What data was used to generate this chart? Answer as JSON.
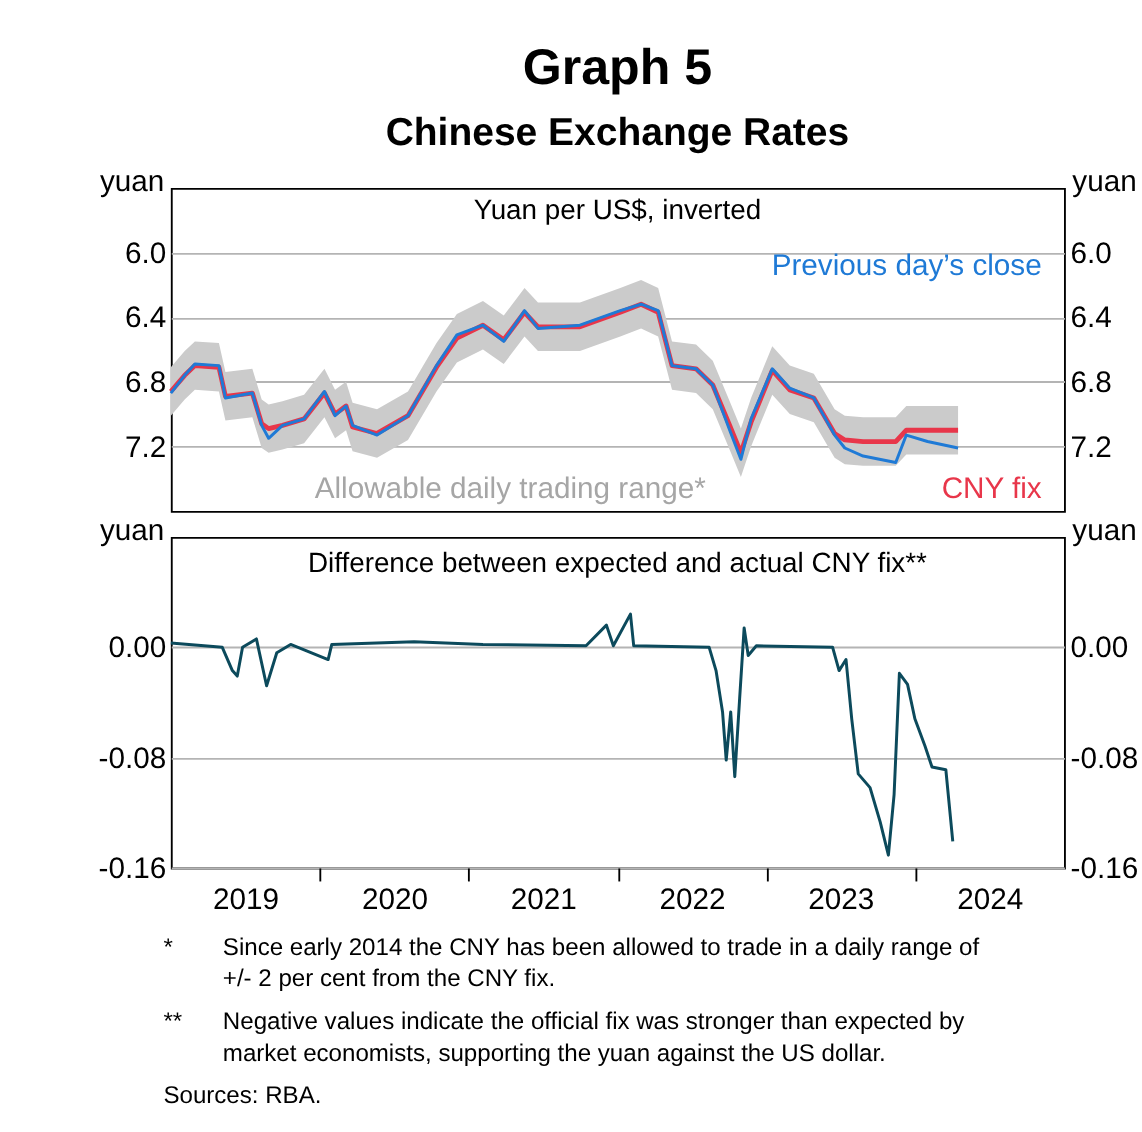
{
  "chart_data": [
    {
      "type": "line",
      "title": "Graph 5",
      "subtitle": "Chinese Exchange Rates",
      "ylabel": "yuan",
      "y2label": "yuan",
      "annotations": [
        "Yuan per US$, inverted",
        "Allowable daily trading range*"
      ],
      "xlim": [
        "2019-01-01",
        "2025-01-01"
      ],
      "tick_labels": "y",
      "ylim": [
        7.6,
        5.6
      ],
      "yticks": [
        {
          "value": 6.0,
          "label": "6.0"
        },
        {
          "value": 6.4,
          "label": "6.4"
        },
        {
          "value": 6.8,
          "label": "6.8"
        },
        {
          "value": 7.2,
          "label": "7.2"
        }
      ],
      "y2lim": [
        7.6,
        5.6
      ],
      "y2ticks": [
        {
          "value": 6.0,
          "label": "6.0"
        },
        {
          "value": 6.4,
          "label": "6.4"
        },
        {
          "value": 6.8,
          "label": "6.8"
        },
        {
          "value": 7.2,
          "label": "7.2"
        }
      ],
      "grid": "y",
      "series": [
        {
          "name": "Previous day’s close",
          "color": "#1f7ad6",
          "x": [
            "2019-01-01",
            "2019-02-04",
            "2019-03-01",
            "2019-04-29",
            "2019-05-15",
            "2019-07-20",
            "2019-08-12",
            "2019-08-29",
            "2019-10-02",
            "2019-11-24",
            "2020-01-13",
            "2020-02-08",
            "2020-03-06",
            "2020-03-22",
            "2020-05-21",
            "2020-08-05",
            "2020-10-14",
            "2020-12-03",
            "2021-02-05",
            "2021-03-28",
            "2021-05-18",
            "2021-06-20",
            "2021-10-01",
            "2022-01-08",
            "2022-02-28",
            "2022-04-11",
            "2022-05-15",
            "2022-07-13",
            "2022-08-23",
            "2022-10-05",
            "2022-10-31",
            "2022-11-25",
            "2023-01-16",
            "2023-02-28",
            "2023-04-28",
            "2023-06-18",
            "2023-07-13",
            "2023-08-27",
            "2023-11-15",
            "2023-12-11",
            "2024-02-01",
            "2024-04-16"
          ],
          "values": [
            6.87,
            6.76,
            6.69,
            6.7,
            6.9,
            6.87,
            7.07,
            7.15,
            7.07,
            7.03,
            6.86,
            7.01,
            6.95,
            7.07,
            7.13,
            7.01,
            6.7,
            6.51,
            6.45,
            6.55,
            6.36,
            6.47,
            6.45,
            6.36,
            6.32,
            6.36,
            6.7,
            6.72,
            6.82,
            7.11,
            7.28,
            7.03,
            6.72,
            6.84,
            6.9,
            7.13,
            7.21,
            7.26,
            7.3,
            7.13,
            7.17,
            7.21
          ]
        },
        {
          "name": "CNY fix",
          "color": "#e8364a",
          "x": [
            "2019-01-01",
            "2019-02-04",
            "2019-03-01",
            "2019-04-29",
            "2019-05-15",
            "2019-07-20",
            "2019-08-12",
            "2019-08-29",
            "2019-10-02",
            "2019-11-24",
            "2020-01-13",
            "2020-02-08",
            "2020-03-06",
            "2020-03-22",
            "2020-05-21",
            "2020-08-05",
            "2020-10-14",
            "2020-12-03",
            "2021-02-05",
            "2021-03-28",
            "2021-05-18",
            "2021-06-20",
            "2021-10-01",
            "2022-01-08",
            "2022-02-28",
            "2022-04-11",
            "2022-05-15",
            "2022-07-13",
            "2022-08-23",
            "2022-10-05",
            "2022-10-31",
            "2022-11-25",
            "2023-01-16",
            "2023-02-28",
            "2023-04-28",
            "2023-06-18",
            "2023-07-13",
            "2023-08-27",
            "2023-11-15",
            "2023-12-11",
            "2024-02-01",
            "2024-04-16"
          ],
          "values": [
            6.86,
            6.76,
            6.7,
            6.71,
            6.89,
            6.87,
            7.06,
            7.09,
            7.07,
            7.03,
            6.87,
            7.0,
            6.95,
            7.08,
            7.12,
            7.01,
            6.71,
            6.53,
            6.45,
            6.54,
            6.37,
            6.46,
            6.46,
            6.37,
            6.32,
            6.37,
            6.7,
            6.72,
            6.82,
            7.08,
            7.24,
            7.05,
            6.73,
            6.85,
            6.9,
            7.12,
            7.16,
            7.17,
            7.17,
            7.1,
            7.1,
            7.1
          ],
          "lower": [
            6.71,
            6.61,
            6.55,
            6.56,
            6.74,
            6.72,
            6.91,
            6.94,
            6.92,
            6.88,
            6.72,
            6.85,
            6.8,
            6.93,
            6.97,
            6.86,
            6.56,
            6.38,
            6.3,
            6.39,
            6.22,
            6.31,
            6.31,
            6.22,
            6.17,
            6.22,
            6.55,
            6.57,
            6.67,
            6.93,
            7.09,
            6.9,
            6.58,
            6.7,
            6.75,
            6.97,
            7.01,
            7.02,
            7.02,
            6.95,
            6.95,
            6.95
          ],
          "upper": [
            7.01,
            6.91,
            6.85,
            6.86,
            7.04,
            7.02,
            7.21,
            7.24,
            7.22,
            7.18,
            7.02,
            7.15,
            7.1,
            7.23,
            7.27,
            7.16,
            6.86,
            6.68,
            6.6,
            6.69,
            6.52,
            6.61,
            6.61,
            6.52,
            6.47,
            6.52,
            6.85,
            6.87,
            6.97,
            7.23,
            7.39,
            7.2,
            6.88,
            7.0,
            7.05,
            7.27,
            7.31,
            7.32,
            7.32,
            7.25,
            7.25,
            7.25
          ]
        }
      ]
    },
    {
      "type": "line",
      "title": "Difference between expected and actual CNY fix**",
      "ylabel": "yuan",
      "y2label": "yuan",
      "annotations": [
        "* Since early 2014 the CNY has been allowed to trade in a daily range of +/- 2 per cent from the CNY fix.",
        "** Negative values indicate the official fix was stronger than expected by market economists, supporting the yuan against the US dollar.",
        "Sources: RBA."
      ],
      "xlim": [
        "2019-01-01",
        "2025-01-01"
      ],
      "xticks": [
        {
          "value": "2020-01-01",
          "label": null
        },
        {
          "value": "2021-01-01",
          "label": null
        },
        {
          "value": "2022-01-01",
          "label": null
        },
        {
          "value": "2023-01-01",
          "label": null
        },
        {
          "value": "2024-01-01",
          "label": null
        },
        {
          "value": "2019-07-02",
          "label": "2019"
        },
        {
          "value": "2020-07-02",
          "label": "2020"
        },
        {
          "value": "2021-07-02",
          "label": "2021"
        },
        {
          "value": "2022-07-02",
          "label": "2022"
        },
        {
          "value": "2023-07-02",
          "label": "2023"
        },
        {
          "value": "2024-07-02",
          "label": "2024"
        }
      ],
      "ylim": [
        -0.16,
        0.08
      ],
      "yticks": [
        {
          "value": 0,
          "label": "0.00"
        },
        {
          "value": -0.08,
          "label": "-0.08"
        },
        {
          "value": -0.16,
          "label": "-0.16"
        }
      ],
      "y2lim": [
        -0.16,
        0.08
      ],
      "y2ticks": [
        {
          "value": 0,
          "label": "0.00"
        },
        {
          "value": -0.08,
          "label": "-0.08"
        },
        {
          "value": -0.16,
          "label": "-0.16"
        }
      ],
      "grid": "y",
      "series": [
        {
          "color": "#0c4a5c",
          "x": [
            "2019-01-01",
            "2019-05-07",
            "2019-06-01",
            "2019-06-13",
            "2019-06-26",
            "2019-07-30",
            "2019-08-24",
            "2019-09-18",
            "2019-10-22",
            "2020-01-22",
            "2020-01-31",
            "2020-08-20",
            "2021-02-05",
            "2021-10-16",
            "2021-12-05",
            "2021-12-22",
            "2022-02-02",
            "2022-02-10",
            "2022-08-14",
            "2022-08-31",
            "2022-09-16",
            "2022-09-25",
            "2022-10-06",
            "2022-10-16",
            "2022-10-28",
            "2022-11-08",
            "2022-11-18",
            "2022-12-08",
            "2023-06-13",
            "2023-06-29",
            "2023-07-16",
            "2023-07-30",
            "2023-08-15",
            "2023-09-13",
            "2023-10-08",
            "2023-10-28",
            "2023-11-11",
            "2023-11-24",
            "2023-12-14",
            "2024-01-01",
            "2024-01-26",
            "2024-02-12",
            "2024-03-17",
            "2024-04-03"
          ],
          "values": [
            0.003,
            0.0,
            -0.017,
            -0.021,
            0.0,
            0.006,
            -0.028,
            -0.004,
            0.002,
            -0.009,
            0.002,
            0.004,
            0.002,
            0.001,
            0.016,
            0.001,
            0.024,
            0.001,
            0.0,
            -0.017,
            -0.047,
            -0.082,
            -0.047,
            -0.094,
            -0.037,
            0.014,
            -0.006,
            0.001,
            0.0,
            -0.017,
            -0.009,
            -0.052,
            -0.092,
            -0.102,
            -0.127,
            -0.151,
            -0.107,
            -0.019,
            -0.027,
            -0.052,
            -0.072,
            -0.087,
            -0.089,
            -0.141
          ]
        }
      ]
    }
  ]
}
